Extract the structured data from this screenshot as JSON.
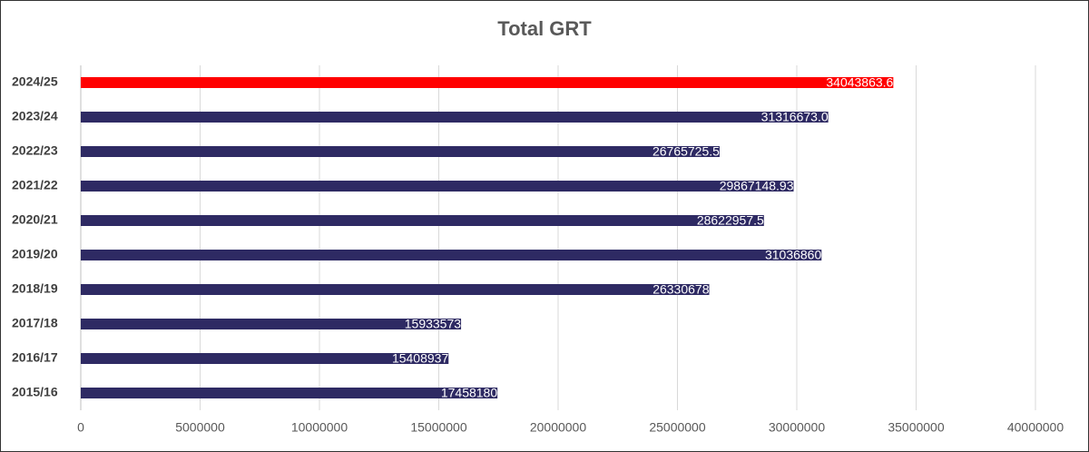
{
  "chart_data": {
    "type": "bar",
    "orientation": "horizontal",
    "title": "Total GRT",
    "categories": [
      "2024/25",
      "2023/24",
      "2022/23",
      "2021/22",
      "2020/21",
      "2019/20",
      "2018/19",
      "2017/18",
      "2016/17",
      "2015/16"
    ],
    "values": [
      34043863.6,
      31316673.0,
      26765725.5,
      29867148.93,
      28622957.5,
      31036860,
      26330678,
      15933573,
      15408937,
      17458180
    ],
    "value_labels": [
      "34043863.6",
      "31316673.0",
      "26765725.5",
      "29867148.93",
      "28622957.5",
      "31036860",
      "26330678",
      "15933573",
      "15408937",
      "17458180"
    ],
    "colors": [
      "#ff0000",
      "#2e2a63",
      "#2e2a63",
      "#2e2a63",
      "#2e2a63",
      "#2e2a63",
      "#2e2a63",
      "#2e2a63",
      "#2e2a63",
      "#2e2a63"
    ],
    "xlim": [
      0,
      40000000
    ],
    "xticks": [
      0,
      5000000,
      10000000,
      15000000,
      20000000,
      25000000,
      30000000,
      35000000,
      40000000
    ],
    "grid": true
  }
}
